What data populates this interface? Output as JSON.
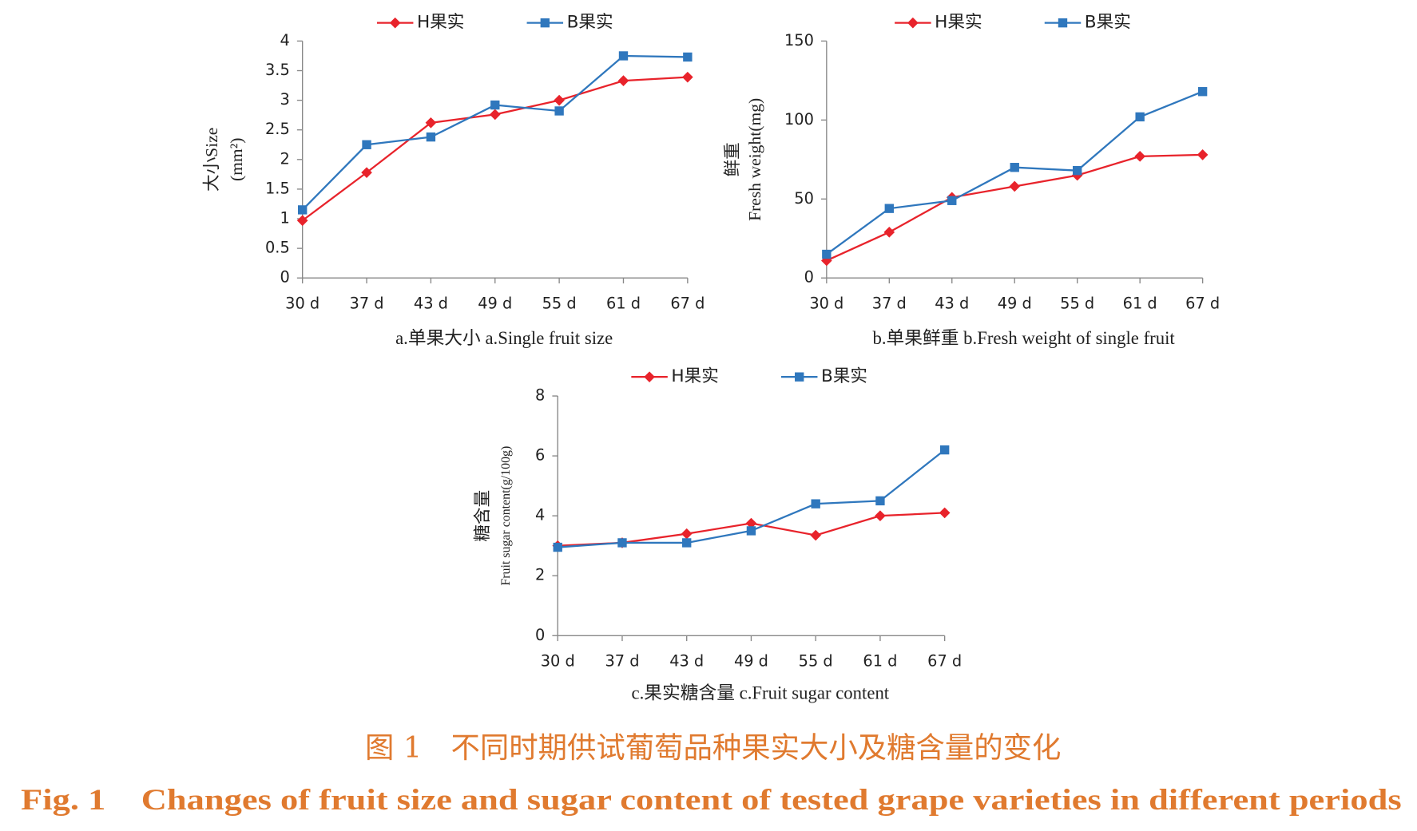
{
  "chart_data": [
    {
      "type": "line",
      "subtitle": "a.单果大小  a.Single fruit size",
      "y_label": [
        "大小Size",
        "(mm²)"
      ],
      "categories": [
        "30 d",
        "37 d",
        "43 d",
        "49 d",
        "55 d",
        "61 d",
        "67 d"
      ],
      "series": [
        {
          "name": "H果实",
          "color": "#e8232b",
          "values": [
            0.97,
            1.78,
            2.62,
            2.76,
            3.0,
            3.33,
            3.39
          ]
        },
        {
          "name": "B果实",
          "color": "#2f77bd",
          "values": [
            1.15,
            2.25,
            2.38,
            2.92,
            2.82,
            3.75,
            3.73
          ]
        }
      ],
      "ylim": [
        0,
        4
      ],
      "yticks": [
        0,
        0.5,
        1,
        1.5,
        2,
        2.5,
        3,
        3.5,
        4
      ]
    },
    {
      "type": "line",
      "subtitle": "b.单果鲜重 b.Fresh weight of single fruit",
      "y_label": [
        "鲜重",
        "Fresh weight(mg)"
      ],
      "categories": [
        "30 d",
        "37 d",
        "43 d",
        "49 d",
        "55 d",
        "61 d",
        "67 d"
      ],
      "series": [
        {
          "name": "H果实",
          "color": "#e8232b",
          "values": [
            11,
            29,
            51,
            58,
            65,
            77,
            78
          ]
        },
        {
          "name": "B果实",
          "color": "#2f77bd",
          "values": [
            15,
            44,
            49,
            70,
            68,
            102,
            118
          ]
        }
      ],
      "ylim": [
        0,
        150
      ],
      "yticks": [
        0,
        50,
        100,
        150
      ]
    },
    {
      "type": "line",
      "subtitle": "c.果实糖含量 c.Fruit sugar content",
      "y_label": [
        "糖含量",
        "Fruit sugar content(g/100g)"
      ],
      "categories": [
        "30 d",
        "37 d",
        "43 d",
        "49 d",
        "55 d",
        "61 d",
        "67 d"
      ],
      "series": [
        {
          "name": "H果实",
          "color": "#e8232b",
          "values": [
            3.0,
            3.1,
            3.4,
            3.75,
            3.35,
            4.0,
            4.1
          ]
        },
        {
          "name": "B果实",
          "color": "#2f77bd",
          "values": [
            2.95,
            3.1,
            3.1,
            3.5,
            4.4,
            4.5,
            6.2
          ]
        }
      ],
      "ylim": [
        0,
        8
      ],
      "yticks": [
        0,
        2,
        4,
        6,
        8
      ]
    }
  ],
  "figure_caption": {
    "zh": "图 1　不同时期供试葡萄品种果实大小及糖含量的变化",
    "en": "Fig. 1　Changes of fruit size and sugar content of tested grape varieties in different periods"
  }
}
